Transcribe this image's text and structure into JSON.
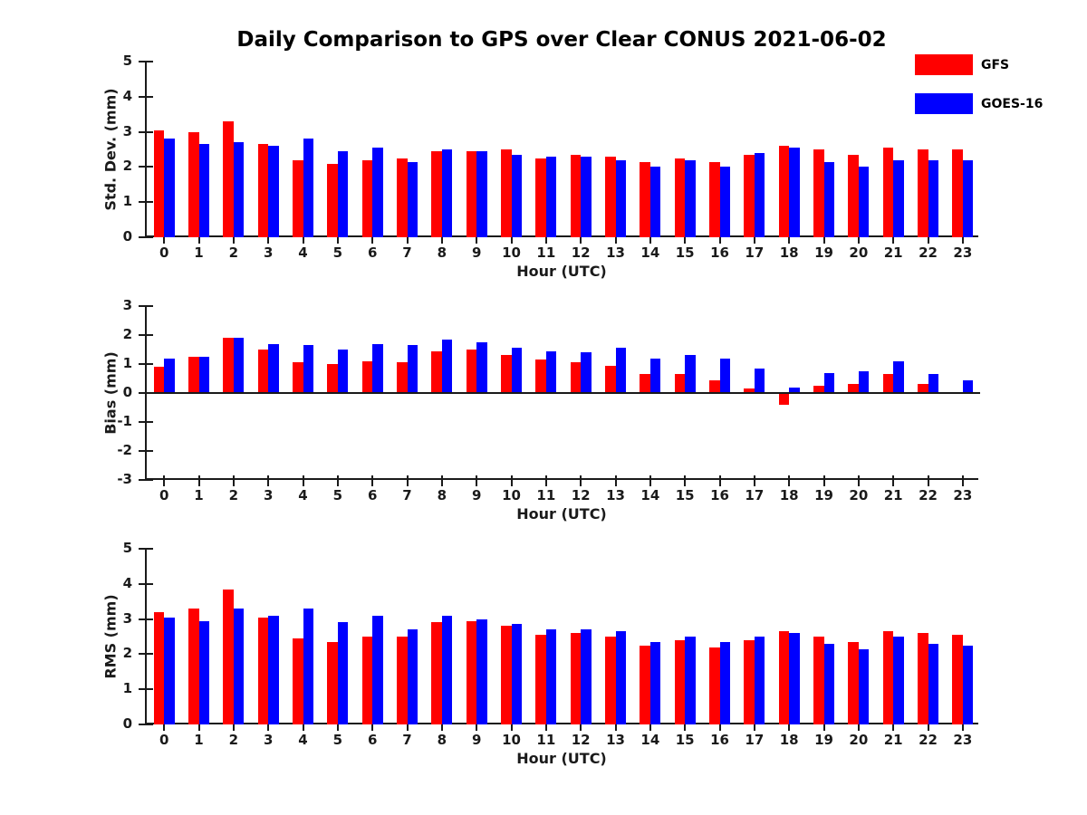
{
  "figure": {
    "title": "Daily Comparison to GPS over Clear CONUS 2021-06-02",
    "axis_color": "#1a1a1a",
    "legend": {
      "position": "top-right",
      "items": [
        {
          "label": "GFS",
          "color": "#ff0000"
        },
        {
          "label": "GOES-16",
          "color": "#0000ff"
        }
      ]
    }
  },
  "chart_data": [
    {
      "type": "bar",
      "panel": "std-dev",
      "ylabel": "Std. Dev. (mm)",
      "xlabel": "Hour (UTC)",
      "ylim": [
        0,
        5
      ],
      "yticks": [
        0,
        1,
        2,
        3,
        4,
        5
      ],
      "grid": false,
      "legend_position": "top-right",
      "categories": [
        "0",
        "1",
        "2",
        "3",
        "4",
        "5",
        "6",
        "7",
        "8",
        "9",
        "10",
        "11",
        "12",
        "13",
        "14",
        "15",
        "16",
        "17",
        "18",
        "19",
        "20",
        "21",
        "22",
        "23"
      ],
      "series": [
        {
          "name": "GFS",
          "color": "#ff0000",
          "values": [
            3.05,
            3.0,
            3.3,
            2.65,
            2.2,
            2.1,
            2.2,
            2.25,
            2.45,
            2.45,
            2.5,
            2.25,
            2.35,
            2.3,
            2.15,
            2.25,
            2.15,
            2.35,
            2.6,
            2.5,
            2.35,
            2.55,
            2.5,
            2.5
          ]
        },
        {
          "name": "GOES-16",
          "color": "#0000ff",
          "values": [
            2.8,
            2.65,
            2.7,
            2.6,
            2.8,
            2.45,
            2.55,
            2.15,
            2.5,
            2.45,
            2.35,
            2.3,
            2.3,
            2.2,
            2.0,
            2.2,
            2.0,
            2.4,
            2.55,
            2.15,
            2.0,
            2.2,
            2.2,
            2.2
          ]
        }
      ]
    },
    {
      "type": "bar",
      "panel": "bias",
      "ylabel": "Bias (mm)",
      "xlabel": "Hour (UTC)",
      "ylim": [
        -3,
        3
      ],
      "yticks": [
        -3,
        -2,
        -1,
        0,
        1,
        2,
        3
      ],
      "grid": false,
      "categories": [
        "0",
        "1",
        "2",
        "3",
        "4",
        "5",
        "6",
        "7",
        "8",
        "9",
        "10",
        "11",
        "12",
        "13",
        "14",
        "15",
        "16",
        "17",
        "18",
        "19",
        "20",
        "21",
        "22",
        "23"
      ],
      "series": [
        {
          "name": "GFS",
          "color": "#ff0000",
          "values": [
            0.9,
            1.25,
            1.9,
            1.5,
            1.05,
            1.0,
            1.1,
            1.05,
            1.45,
            1.5,
            1.3,
            1.15,
            1.05,
            0.95,
            0.65,
            0.65,
            0.45,
            0.15,
            -0.4,
            0.25,
            0.3,
            0.65,
            0.3,
            0.0
          ]
        },
        {
          "name": "GOES-16",
          "color": "#0000ff",
          "values": [
            1.2,
            1.25,
            1.9,
            1.7,
            1.65,
            1.5,
            1.7,
            1.65,
            1.85,
            1.75,
            1.55,
            1.45,
            1.4,
            1.55,
            1.2,
            1.3,
            1.2,
            0.85,
            0.2,
            0.7,
            0.75,
            1.1,
            0.65,
            0.45
          ]
        }
      ]
    },
    {
      "type": "bar",
      "panel": "rms",
      "ylabel": "RMS (mm)",
      "xlabel": "Hour (UTC)",
      "ylim": [
        0,
        5
      ],
      "yticks": [
        0,
        1,
        2,
        3,
        4,
        5
      ],
      "grid": false,
      "categories": [
        "0",
        "1",
        "2",
        "3",
        "4",
        "5",
        "6",
        "7",
        "8",
        "9",
        "10",
        "11",
        "12",
        "13",
        "14",
        "15",
        "16",
        "17",
        "18",
        "19",
        "20",
        "21",
        "22",
        "23"
      ],
      "series": [
        {
          "name": "GFS",
          "color": "#ff0000",
          "values": [
            3.2,
            3.3,
            3.85,
            3.05,
            2.45,
            2.35,
            2.5,
            2.5,
            2.9,
            2.95,
            2.8,
            2.55,
            2.6,
            2.5,
            2.25,
            2.4,
            2.2,
            2.4,
            2.65,
            2.5,
            2.35,
            2.65,
            2.6,
            2.55
          ]
        },
        {
          "name": "GOES-16",
          "color": "#0000ff",
          "values": [
            3.05,
            2.95,
            3.3,
            3.1,
            3.3,
            2.9,
            3.1,
            2.7,
            3.1,
            3.0,
            2.85,
            2.7,
            2.7,
            2.65,
            2.35,
            2.5,
            2.35,
            2.5,
            2.6,
            2.3,
            2.15,
            2.5,
            2.3,
            2.25
          ]
        }
      ]
    }
  ]
}
